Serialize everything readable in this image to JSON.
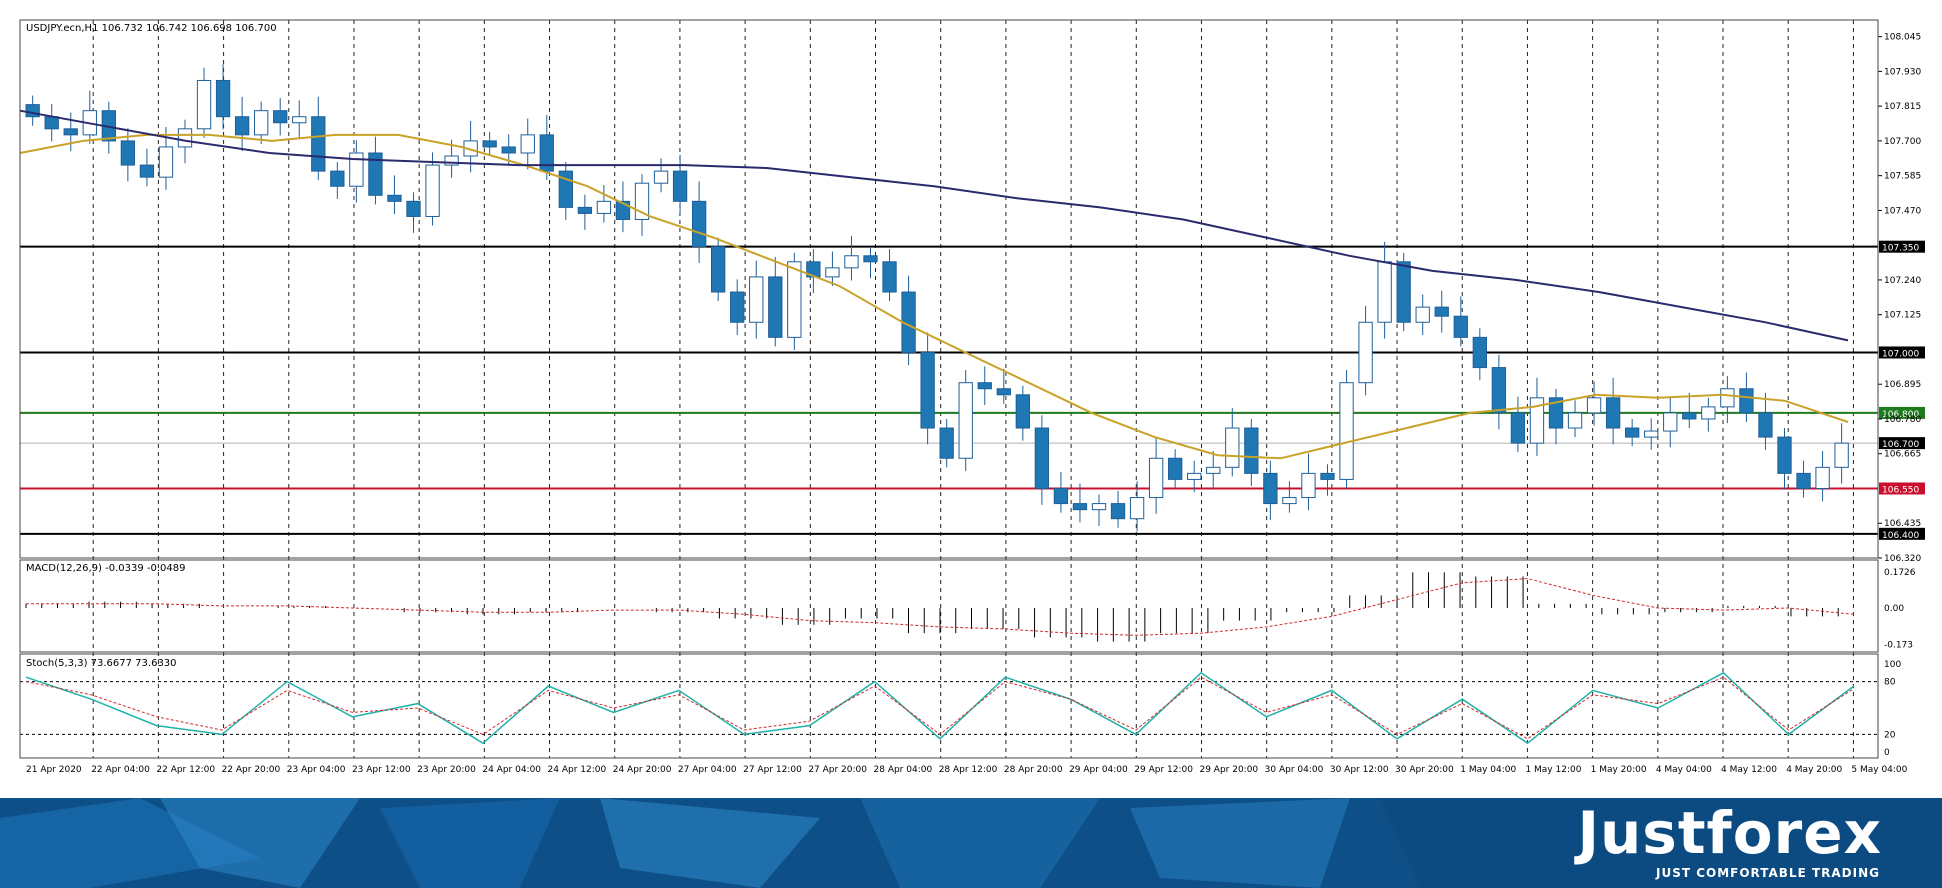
{
  "chart_data": {
    "type": "candlestick",
    "symbol_line": "USDJPY.ecn,H1  106.732 106.742 106.698 106.700",
    "x_labels": [
      "21 Apr 2020",
      "22 Apr 04:00",
      "22 Apr 12:00",
      "22 Apr 20:00",
      "23 Apr 04:00",
      "23 Apr 12:00",
      "23 Apr 20:00",
      "24 Apr 04:00",
      "24 Apr 12:00",
      "24 Apr 20:00",
      "27 Apr 04:00",
      "27 Apr 12:00",
      "27 Apr 20:00",
      "28 Apr 04:00",
      "28 Apr 12:00",
      "28 Apr 20:00",
      "29 Apr 04:00",
      "29 Apr 12:00",
      "29 Apr 20:00",
      "30 Apr 04:00",
      "30 Apr 12:00",
      "30 Apr 20:00",
      "1 May 04:00",
      "1 May 12:00",
      "1 May 20:00",
      "4 May 04:00",
      "4 May 12:00",
      "4 May 20:00",
      "5 May 04:00"
    ],
    "price_axis": {
      "min": 106.32,
      "max": 108.1,
      "ticks": [
        108.045,
        107.93,
        107.815,
        107.7,
        107.585,
        107.47,
        107.24,
        107.125,
        106.895,
        106.78,
        106.665,
        106.435,
        106.32
      ]
    },
    "levels": [
      {
        "value": 107.35,
        "label": "107.350",
        "color": "#000000"
      },
      {
        "value": 107.0,
        "label": "107.000",
        "color": "#000000"
      },
      {
        "value": 106.8,
        "label": "106.800",
        "color": "#1e7a1e"
      },
      {
        "value": 106.7,
        "label": "106.700",
        "color": "#b0b0b0"
      },
      {
        "value": 106.55,
        "label": "106.550",
        "color": "#c8102e"
      },
      {
        "value": 106.4,
        "label": "106.400",
        "color": "#000000"
      }
    ],
    "candles_close": [
      107.78,
      107.74,
      107.72,
      107.8,
      107.7,
      107.62,
      107.58,
      107.68,
      107.74,
      107.9,
      107.78,
      107.72,
      107.8,
      107.76,
      107.78,
      107.6,
      107.55,
      107.66,
      107.52,
      107.5,
      107.45,
      107.62,
      107.65,
      107.7,
      107.68,
      107.66,
      107.72,
      107.6,
      107.48,
      107.46,
      107.5,
      107.44,
      107.56,
      107.6,
      107.5,
      107.35,
      107.2,
      107.1,
      107.25,
      107.05,
      107.3,
      107.25,
      107.28,
      107.32,
      107.3,
      107.2,
      107.0,
      106.75,
      106.65,
      106.9,
      106.88,
      106.86,
      106.75,
      106.55,
      106.5,
      106.48,
      106.5,
      106.45,
      106.52,
      106.65,
      106.58,
      106.6,
      106.62,
      106.75,
      106.6,
      106.5,
      106.52,
      106.6,
      106.58,
      106.9,
      107.1,
      107.3,
      107.1,
      107.15,
      107.12,
      107.05,
      106.95,
      106.8,
      106.7,
      106.85,
      106.75,
      106.8,
      106.85,
      106.75,
      106.72,
      106.74,
      106.8,
      106.78,
      106.82,
      106.88,
      106.8,
      106.72,
      106.6,
      106.55,
      106.62,
      106.7
    ],
    "ma_fast": [
      107.66,
      107.7,
      107.72,
      107.72,
      107.7,
      107.72,
      107.72,
      107.68,
      107.62,
      107.55,
      107.45,
      107.38,
      107.3,
      107.22,
      107.1,
      107.0,
      106.9,
      106.8,
      106.72,
      106.66,
      106.65,
      106.7,
      106.75,
      106.8,
      106.82,
      106.86,
      106.85,
      106.86,
      106.84,
      106.77
    ],
    "ma_slow": [
      107.8,
      107.75,
      107.7,
      107.66,
      107.64,
      107.63,
      107.62,
      107.62,
      107.62,
      107.61,
      107.58,
      107.55,
      107.51,
      107.48,
      107.44,
      107.38,
      107.32,
      107.27,
      107.24,
      107.2,
      107.15,
      107.1,
      107.04
    ],
    "macd": {
      "label": "MACD(12,26,9) -0.0339 -0.0489",
      "ticks": [
        "0.1726",
        "0.00",
        "-0.173"
      ],
      "min": -0.2,
      "max": 0.2,
      "histogram": [
        0.02,
        0.03,
        0.02,
        0.0,
        0.01,
        0.0,
        -0.02,
        -0.03,
        -0.02,
        0.0,
        -0.02,
        -0.05,
        -0.08,
        -0.05,
        -0.12,
        -0.1,
        -0.14,
        -0.16,
        -0.12,
        -0.06,
        -0.02,
        0.06,
        0.17,
        0.15,
        0.02,
        -0.03,
        -0.02,
        0.01,
        -0.04
      ],
      "signal": [
        0.02,
        0.02,
        0.02,
        0.01,
        0.01,
        0.0,
        -0.01,
        -0.02,
        -0.02,
        -0.01,
        -0.01,
        -0.03,
        -0.06,
        -0.07,
        -0.09,
        -0.1,
        -0.12,
        -0.13,
        -0.12,
        -0.09,
        -0.04,
        0.04,
        0.12,
        0.14,
        0.06,
        0.0,
        -0.01,
        0.0,
        -0.03
      ]
    },
    "stoch": {
      "label": "Stoch(5,3,3) 73.6677 73.6330",
      "ticks": [
        "100",
        "80",
        "20",
        "0"
      ],
      "main": [
        85,
        60,
        30,
        20,
        80,
        40,
        55,
        10,
        75,
        45,
        70,
        20,
        30,
        80,
        15,
        85,
        60,
        20,
        90,
        40,
        70,
        15,
        60,
        10,
        70,
        50,
        90,
        20,
        75
      ],
      "signal": [
        80,
        65,
        40,
        25,
        70,
        45,
        50,
        20,
        70,
        50,
        65,
        25,
        35,
        75,
        20,
        80,
        60,
        25,
        85,
        45,
        65,
        20,
        55,
        15,
        65,
        55,
        85,
        25,
        72
      ]
    }
  },
  "colors": {
    "bull": "#ffffff",
    "bear": "#1f77b4",
    "candle_edge": "#1f5f99",
    "ma_fast": "#c9a227",
    "ma_slow": "#2a2a6e",
    "macd_signal": "#d12b2b",
    "stoch_main": "#20b2aa",
    "stoch_signal": "#d12b2b"
  },
  "footer": {
    "brand": "Justforex",
    "tagline": "JUST COMFORTABLE TRADING"
  }
}
